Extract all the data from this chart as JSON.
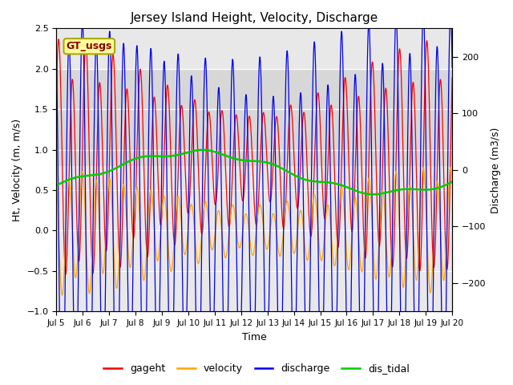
{
  "title": "Jersey Island Height, Velocity, Discharge",
  "xlabel": "Time",
  "ylabel_left": "Ht, Velocity (m, m/s)",
  "ylabel_right": "Discharge (m3/s)",
  "ylim_left": [
    -1.0,
    2.5
  ],
  "ylim_right": [
    -250,
    250
  ],
  "xlim_start": 5.0,
  "xlim_end": 20.0,
  "xtick_labels": [
    "Jul 5",
    "Jul 6",
    "Jul 7",
    "Jul 8",
    "Jul 9",
    "Jul 10",
    "Jul 11",
    "Jul 12",
    "Jul 13",
    "Jul 14",
    "Jul 15",
    "Jul 16",
    "Jul 17",
    "Jul 18",
    "Jul 19",
    "Jul 20"
  ],
  "xtick_positions": [
    5,
    6,
    7,
    8,
    9,
    10,
    11,
    12,
    13,
    14,
    15,
    16,
    17,
    18,
    19,
    20
  ],
  "colors": {
    "gageht": "#FF0000",
    "velocity": "#FFA500",
    "discharge": "#0000EE",
    "dis_tidal": "#00CC00",
    "background": "#E8E8E8",
    "shade_band_color": "#D8D8D8"
  },
  "legend_label": "GT_usgs",
  "legend_bg": "#FFFF99",
  "legend_border": "#AAAA00",
  "tidal_period_hours": 12.4,
  "spring_neap_days": 14.8,
  "time_start": 5,
  "time_end": 20,
  "n_points": 5000,
  "shade_ymin": 0.8,
  "shade_ymax": 2.0
}
